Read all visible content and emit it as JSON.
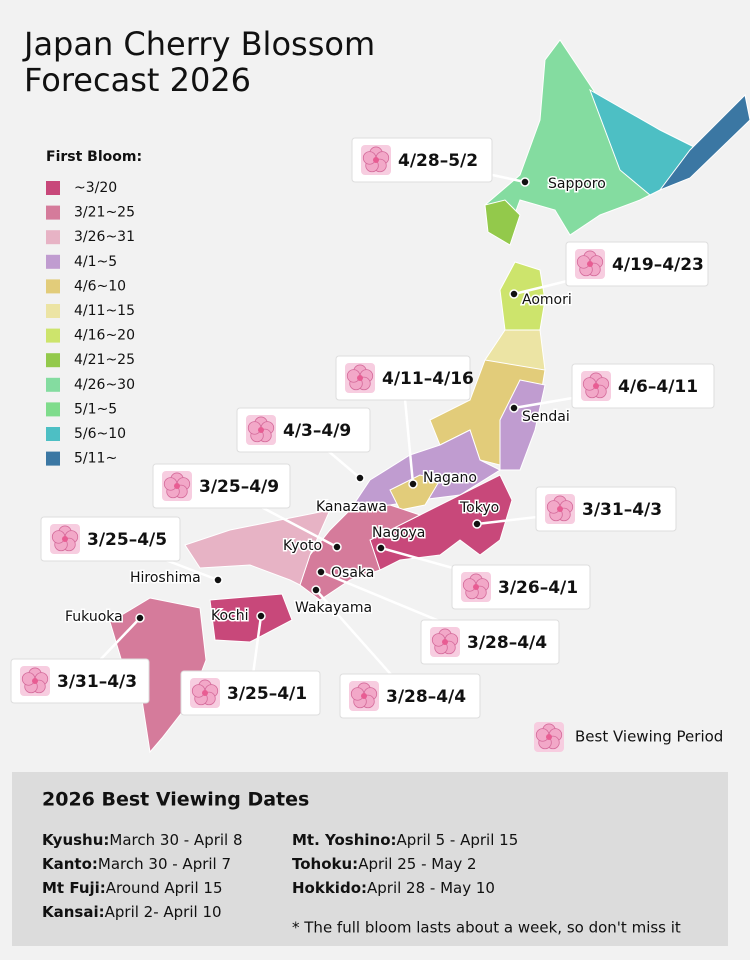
{
  "header": {
    "title_lines": [
      "Japan Cherry Blossom",
      "Forecast 2026"
    ]
  },
  "legend": {
    "title": "First Bloom:",
    "items": [
      {
        "label": "~3/20",
        "color": "#c8487a"
      },
      {
        "label": "3/21~25",
        "color": "#d57b9b"
      },
      {
        "label": "3/26~31",
        "color": "#e7b3c5"
      },
      {
        "label": "4/1~5",
        "color": "#c09cd0"
      },
      {
        "label": "4/6~10",
        "color": "#e2cc7a"
      },
      {
        "label": "4/11~15",
        "color": "#ece4a4"
      },
      {
        "label": "4/16~20",
        "color": "#cde46c"
      },
      {
        "label": "4/21~25",
        "color": "#93c94b"
      },
      {
        "label": "4/26~30",
        "color": "#84dca0"
      },
      {
        "label": "5/1~5",
        "color": "#7fdc8c"
      },
      {
        "label": "5/6~10",
        "color": "#4dbfc4"
      },
      {
        "label": "5/11~",
        "color": "#3b77a3"
      }
    ]
  },
  "cities": [
    "Sapporo",
    "Aomori",
    "Sendai",
    "Nagano",
    "Kanazawa",
    "Tokyo",
    "Nagoya",
    "Kyoto",
    "Osaka",
    "Hiroshima",
    "Wakayama",
    "Kochi",
    "Fukuoka"
  ],
  "callouts": [
    "4/28–5/2",
    "4/19–4/23",
    "4/11–4/16",
    "4/6–4/11",
    "4/3–4/9",
    "3/25–4/9",
    "3/31–4/3",
    "3/25–4/5",
    "3/26–4/1",
    "3/28–4/4",
    "3/31–4/3",
    "3/25–4/1",
    "3/28–4/4"
  ],
  "key": {
    "label": "Best Viewing Period"
  },
  "dates": {
    "title": "2026 Best Viewing Dates",
    "left": [
      {
        "region": "Kyushu:",
        "dates": "March 30 - April 8"
      },
      {
        "region": "Kanto:",
        "dates": "March 30 - April 7"
      },
      {
        "region": "Mt Fuji:",
        "dates": "Around April 15"
      },
      {
        "region": "Kansai:",
        "dates": "April 2- April 10"
      }
    ],
    "right": [
      {
        "region": "Mt. Yoshino:",
        "dates": "April 5 - April 15"
      },
      {
        "region": "Tohoku:",
        "dates": "April 25 - May 2"
      },
      {
        "region": "Hokkido:",
        "dates": "April 28 - May 10"
      }
    ],
    "note": "* The full bloom lasts about a week, so don't miss it"
  }
}
